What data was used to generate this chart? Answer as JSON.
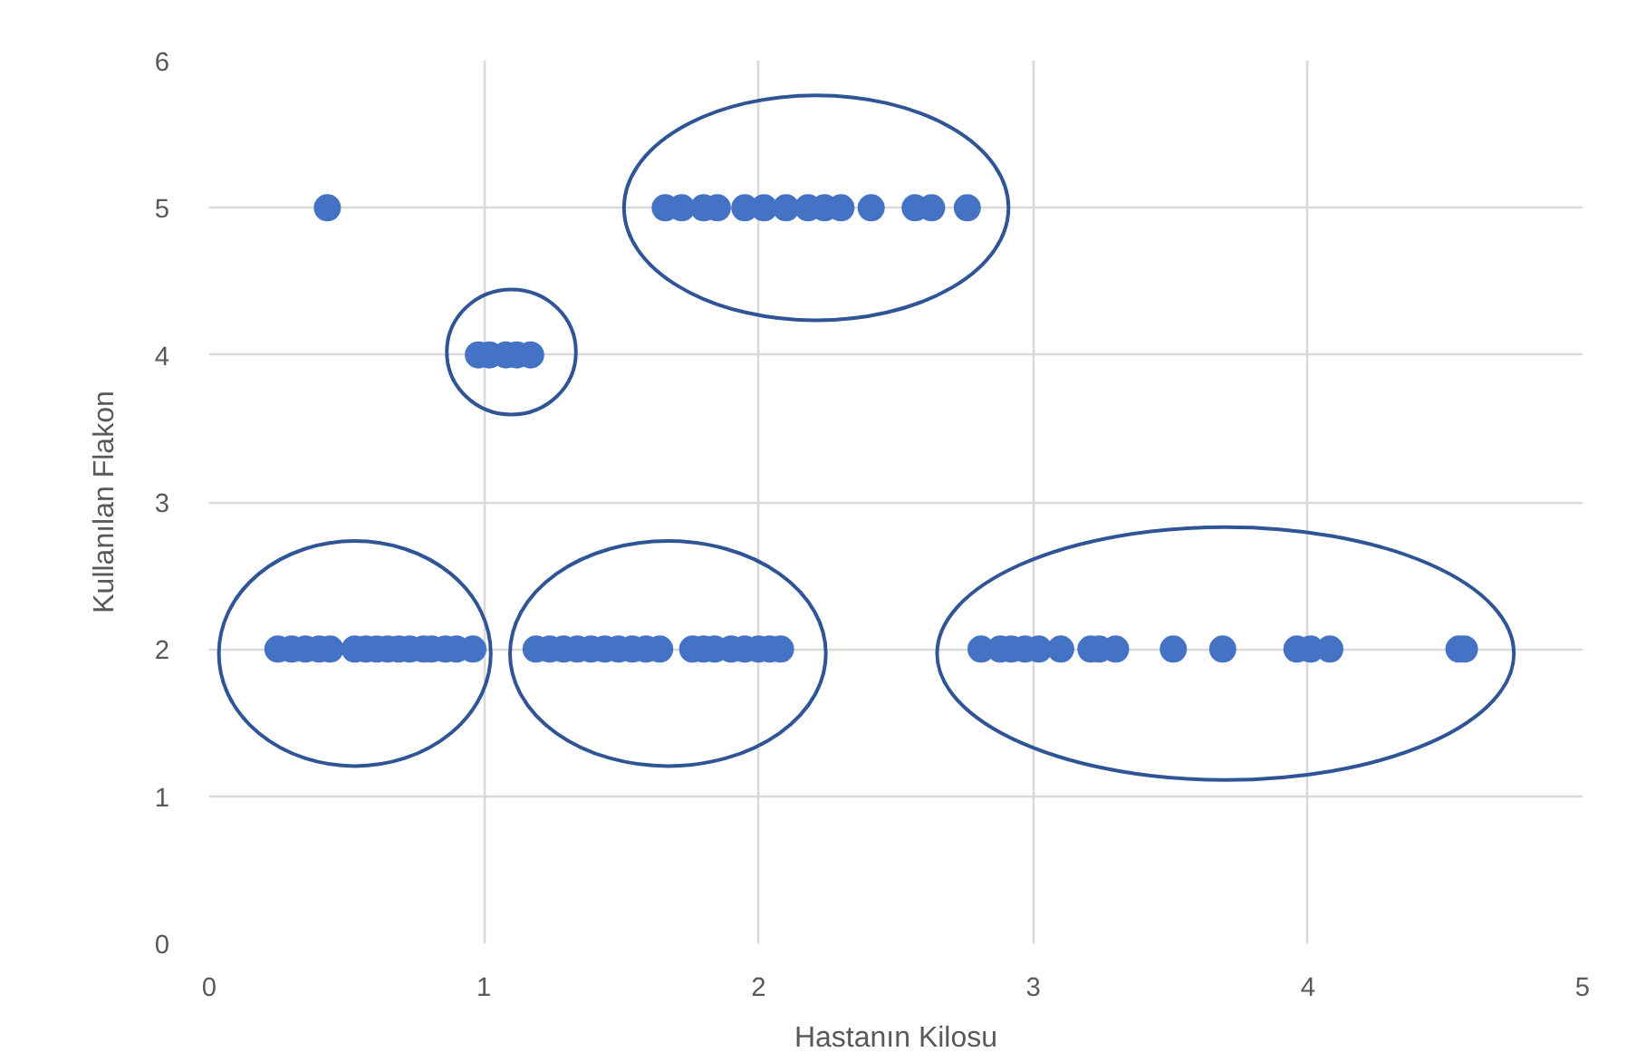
{
  "chart_data": {
    "type": "scatter",
    "xlabel": "Hastanın Kilosu",
    "ylabel": "Kullanılan Flakon",
    "x": [
      0.25,
      0.3,
      0.35,
      0.4,
      0.44,
      0.53,
      0.57,
      0.61,
      0.65,
      0.69,
      0.73,
      0.78,
      0.81,
      0.86,
      0.9,
      0.96,
      1.19,
      1.24,
      1.29,
      1.34,
      1.39,
      1.44,
      1.49,
      1.54,
      1.59,
      1.64,
      1.76,
      1.8,
      1.84,
      1.9,
      1.95,
      2.0,
      2.04,
      2.08,
      2.81,
      2.88,
      2.92,
      2.97,
      3.02,
      3.1,
      3.21,
      3.24,
      3.3,
      3.51,
      3.69,
      3.96,
      4.01,
      4.08,
      4.55,
      4.57,
      0.43,
      1.66,
      1.72,
      1.8,
      1.85,
      1.95,
      2.02,
      2.1,
      2.18,
      2.24,
      2.3,
      2.41,
      2.57,
      2.63,
      2.76,
      0.98,
      1.02,
      1.08,
      1.12,
      1.17
    ],
    "series": [
      {
        "color": "#4472c4",
        "values": [
          2,
          2,
          2,
          2,
          2,
          2,
          2,
          2,
          2,
          2,
          2,
          2,
          2,
          2,
          2,
          2,
          2,
          2,
          2,
          2,
          2,
          2,
          2,
          2,
          2,
          2,
          2,
          2,
          2,
          2,
          2,
          2,
          2,
          2,
          2,
          2,
          2,
          2,
          2,
          2,
          2,
          2,
          2,
          2,
          2,
          2,
          2,
          2,
          2,
          2,
          5,
          5,
          5,
          5,
          5,
          5,
          5,
          5,
          5,
          5,
          5,
          5,
          5,
          5,
          5,
          4,
          4,
          4,
          4,
          4
        ]
      }
    ],
    "xlim": [
      0,
      5
    ],
    "ylim": [
      0,
      6
    ],
    "xticks": [
      0,
      1,
      2,
      3,
      4,
      5
    ],
    "yticks": [
      0,
      1,
      2,
      3,
      4,
      5,
      6
    ],
    "grid": true,
    "marker": "circle"
  }
}
